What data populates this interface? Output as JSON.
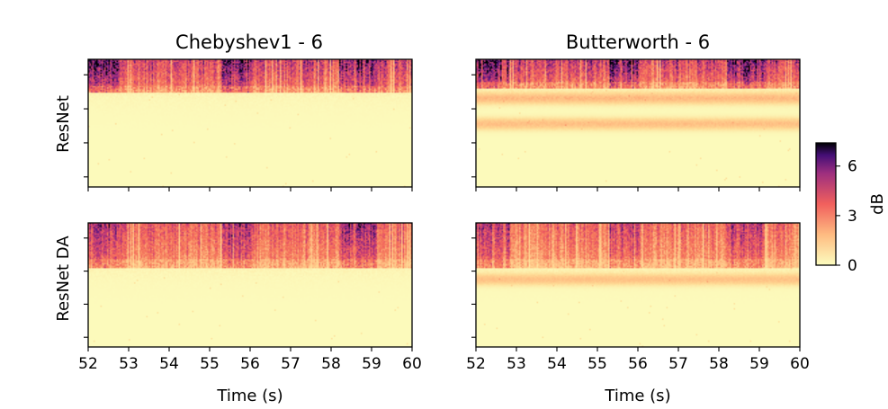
{
  "chart_data": {
    "type": "heatmap",
    "colormap": "magma_r",
    "colorbar": {
      "label": "dB",
      "ticks": [
        0,
        3,
        6
      ],
      "range": [
        0,
        7.4
      ]
    },
    "x_ticks": [
      52,
      53,
      54,
      55,
      56,
      57,
      58,
      59,
      60
    ],
    "xlim": [
      52,
      60
    ],
    "xlabel": "Time (s)",
    "columns": [
      {
        "title": "Chebyshev1 - 6"
      },
      {
        "title": "Butterworth - 6"
      }
    ],
    "rows": [
      {
        "label": "ResNet"
      },
      {
        "label": "ResNet DA"
      }
    ],
    "panels": [
      {
        "row": "ResNet",
        "column": "Chebyshev1 - 6",
        "active_band_fraction": 0.26,
        "band_level_db": 5.2,
        "low_freq_bands": []
      },
      {
        "row": "ResNet",
        "column": "Butterworth - 6",
        "active_band_fraction": 0.22,
        "band_level_db": 5.4,
        "low_freq_bands": [
          {
            "center_fraction": 0.3,
            "level_db": 1.7
          },
          {
            "center_fraction": 0.5,
            "level_db": 1.6
          }
        ]
      },
      {
        "row": "ResNet DA",
        "column": "Chebyshev1 - 6",
        "active_band_fraction": 0.36,
        "band_level_db": 4.3,
        "low_freq_bands": []
      },
      {
        "row": "ResNet DA",
        "column": "Butterworth - 6",
        "active_band_fraction": 0.36,
        "band_level_db": 4.0,
        "low_freq_bands": [
          {
            "center_fraction": 0.45,
            "level_db": 1.5
          }
        ]
      }
    ],
    "intense_segments_s": [
      [
        52,
        52.8
      ],
      [
        55.3,
        56.0
      ],
      [
        58.2,
        59.1
      ]
    ]
  }
}
